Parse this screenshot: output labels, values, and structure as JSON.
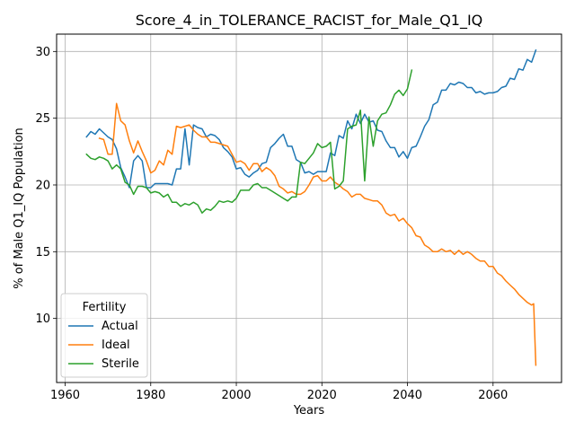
{
  "chart_data": {
    "type": "line",
    "title": "Score_4_in_TOLERANCE_RACIST_for_Male_Q1_IQ",
    "xlabel": "Years",
    "ylabel": "% of Male Q1_IQ Population",
    "xlim": [
      1958,
      2076
    ],
    "ylim": [
      5.2,
      31.3
    ],
    "xticks": [
      1960,
      1980,
      2000,
      2020,
      2040,
      2060
    ],
    "yticks": [
      10,
      15,
      20,
      25,
      30
    ],
    "grid": true,
    "legend": {
      "title": "Fertility",
      "placement": "lower-left"
    },
    "series": [
      {
        "name": "Actual",
        "color": "#1f77b4",
        "points": [
          [
            1965,
            23.6
          ],
          [
            1966,
            24.0
          ],
          [
            1967,
            23.8
          ],
          [
            1968,
            24.2
          ],
          [
            1969,
            23.9
          ],
          [
            1970,
            23.6
          ],
          [
            1971,
            23.4
          ],
          [
            1972,
            22.7
          ],
          [
            1973,
            21.3
          ],
          [
            1974,
            20.6
          ],
          [
            1975,
            19.8
          ],
          [
            1976,
            21.8
          ],
          [
            1977,
            22.2
          ],
          [
            1978,
            21.8
          ],
          [
            1979,
            19.8
          ],
          [
            1980,
            19.8
          ],
          [
            1981,
            20.1
          ],
          [
            1982,
            20.1
          ],
          [
            1983,
            20.1
          ],
          [
            1984,
            20.1
          ],
          [
            1985,
            20.0
          ],
          [
            1986,
            21.2
          ],
          [
            1987,
            21.2
          ],
          [
            1988,
            24.2
          ],
          [
            1989,
            21.5
          ],
          [
            1990,
            24.5
          ],
          [
            1991,
            24.3
          ],
          [
            1992,
            24.2
          ],
          [
            1993,
            23.6
          ],
          [
            1994,
            23.8
          ],
          [
            1995,
            23.7
          ],
          [
            1996,
            23.4
          ],
          [
            1997,
            22.8
          ],
          [
            1998,
            22.5
          ],
          [
            1999,
            22.1
          ],
          [
            2000,
            21.2
          ],
          [
            2001,
            21.3
          ],
          [
            2002,
            20.8
          ],
          [
            2003,
            20.6
          ],
          [
            2004,
            20.9
          ],
          [
            2005,
            21.1
          ],
          [
            2006,
            21.6
          ],
          [
            2007,
            21.7
          ],
          [
            2008,
            22.8
          ],
          [
            2009,
            23.1
          ],
          [
            2010,
            23.5
          ],
          [
            2011,
            23.8
          ],
          [
            2012,
            22.9
          ],
          [
            2013,
            22.9
          ],
          [
            2014,
            21.9
          ],
          [
            2015,
            21.7
          ],
          [
            2016,
            20.9
          ],
          [
            2017,
            21.0
          ],
          [
            2018,
            20.8
          ],
          [
            2019,
            21.0
          ],
          [
            2020,
            21.0
          ],
          [
            2021,
            21.0
          ],
          [
            2022,
            22.4
          ],
          [
            2023,
            22.2
          ],
          [
            2024,
            23.7
          ],
          [
            2025,
            23.5
          ],
          [
            2026,
            24.8
          ],
          [
            2027,
            24.2
          ],
          [
            2028,
            25.3
          ],
          [
            2029,
            24.6
          ],
          [
            2030,
            25.3
          ],
          [
            2031,
            24.7
          ],
          [
            2032,
            24.8
          ],
          [
            2033,
            24.1
          ],
          [
            2034,
            24.0
          ],
          [
            2035,
            23.3
          ],
          [
            2036,
            22.8
          ],
          [
            2037,
            22.8
          ],
          [
            2038,
            22.1
          ],
          [
            2039,
            22.5
          ],
          [
            2040,
            22.0
          ],
          [
            2041,
            22.8
          ],
          [
            2042,
            22.9
          ],
          [
            2043,
            23.6
          ],
          [
            2044,
            24.4
          ],
          [
            2045,
            24.9
          ],
          [
            2046,
            26.0
          ],
          [
            2047,
            26.2
          ],
          [
            2048,
            27.1
          ],
          [
            2049,
            27.1
          ],
          [
            2050,
            27.6
          ],
          [
            2051,
            27.5
          ],
          [
            2052,
            27.7
          ],
          [
            2053,
            27.6
          ],
          [
            2054,
            27.3
          ],
          [
            2055,
            27.3
          ],
          [
            2056,
            26.9
          ],
          [
            2057,
            27.0
          ],
          [
            2058,
            26.8
          ],
          [
            2059,
            26.9
          ],
          [
            2060,
            26.9
          ],
          [
            2061,
            27.0
          ],
          [
            2062,
            27.3
          ],
          [
            2063,
            27.4
          ],
          [
            2064,
            28.0
          ],
          [
            2065,
            27.9
          ],
          [
            2066,
            28.7
          ],
          [
            2067,
            28.6
          ],
          [
            2068,
            29.4
          ],
          [
            2069,
            29.2
          ],
          [
            2070,
            30.1
          ]
        ]
      },
      {
        "name": "Ideal",
        "color": "#ff7f0e",
        "points": [
          [
            1968,
            23.5
          ],
          [
            1969,
            23.4
          ],
          [
            1970,
            22.3
          ],
          [
            1971,
            22.3
          ],
          [
            1972,
            26.1
          ],
          [
            1973,
            24.8
          ],
          [
            1974,
            24.5
          ],
          [
            1975,
            23.3
          ],
          [
            1976,
            22.4
          ],
          [
            1977,
            23.3
          ],
          [
            1978,
            22.5
          ],
          [
            1979,
            21.8
          ],
          [
            1980,
            20.9
          ],
          [
            1981,
            21.1
          ],
          [
            1982,
            21.8
          ],
          [
            1983,
            21.5
          ],
          [
            1984,
            22.6
          ],
          [
            1985,
            22.3
          ],
          [
            1986,
            24.4
          ],
          [
            1987,
            24.3
          ],
          [
            1988,
            24.4
          ],
          [
            1989,
            24.5
          ],
          [
            1990,
            24.1
          ],
          [
            1991,
            23.8
          ],
          [
            1992,
            23.6
          ],
          [
            1993,
            23.6
          ],
          [
            1994,
            23.2
          ],
          [
            1995,
            23.2
          ],
          [
            1996,
            23.1
          ],
          [
            1997,
            23.0
          ],
          [
            1998,
            22.9
          ],
          [
            1999,
            22.3
          ],
          [
            2000,
            21.7
          ],
          [
            2001,
            21.8
          ],
          [
            2002,
            21.6
          ],
          [
            2003,
            21.1
          ],
          [
            2004,
            21.6
          ],
          [
            2005,
            21.6
          ],
          [
            2006,
            21.0
          ],
          [
            2007,
            21.3
          ],
          [
            2008,
            21.1
          ],
          [
            2009,
            20.7
          ],
          [
            2010,
            19.9
          ],
          [
            2011,
            19.7
          ],
          [
            2012,
            19.4
          ],
          [
            2013,
            19.5
          ],
          [
            2014,
            19.3
          ],
          [
            2015,
            19.3
          ],
          [
            2016,
            19.5
          ],
          [
            2017,
            20.0
          ],
          [
            2018,
            20.6
          ],
          [
            2019,
            20.7
          ],
          [
            2020,
            20.3
          ],
          [
            2021,
            20.3
          ],
          [
            2022,
            20.6
          ],
          [
            2023,
            20.2
          ],
          [
            2024,
            20.0
          ],
          [
            2025,
            19.7
          ],
          [
            2026,
            19.5
          ],
          [
            2027,
            19.1
          ],
          [
            2028,
            19.3
          ],
          [
            2029,
            19.3
          ],
          [
            2030,
            19.0
          ],
          [
            2031,
            18.9
          ],
          [
            2032,
            18.8
          ],
          [
            2033,
            18.8
          ],
          [
            2034,
            18.5
          ],
          [
            2035,
            17.9
          ],
          [
            2036,
            17.7
          ],
          [
            2037,
            17.8
          ],
          [
            2038,
            17.3
          ],
          [
            2039,
            17.5
          ],
          [
            2040,
            17.1
          ],
          [
            2041,
            16.8
          ],
          [
            2042,
            16.2
          ],
          [
            2043,
            16.1
          ],
          [
            2044,
            15.5
          ],
          [
            2045,
            15.3
          ],
          [
            2046,
            15.0
          ],
          [
            2047,
            15.0
          ],
          [
            2048,
            15.2
          ],
          [
            2049,
            15.0
          ],
          [
            2050,
            15.1
          ],
          [
            2051,
            14.8
          ],
          [
            2052,
            15.1
          ],
          [
            2053,
            14.8
          ],
          [
            2054,
            15.0
          ],
          [
            2055,
            14.8
          ],
          [
            2056,
            14.5
          ],
          [
            2057,
            14.3
          ],
          [
            2058,
            14.3
          ],
          [
            2059,
            13.9
          ],
          [
            2060,
            13.9
          ],
          [
            2061,
            13.4
          ],
          [
            2062,
            13.2
          ],
          [
            2063,
            12.8
          ],
          [
            2064,
            12.5
          ],
          [
            2065,
            12.2
          ],
          [
            2066,
            11.8
          ],
          [
            2067,
            11.5
          ],
          [
            2068,
            11.2
          ],
          [
            2069,
            11.0
          ],
          [
            2069.5,
            11.1
          ],
          [
            2070,
            6.5
          ]
        ]
      },
      {
        "name": "Sterile",
        "color": "#2ca02c",
        "points": [
          [
            1965,
            22.3
          ],
          [
            1966,
            22.0
          ],
          [
            1967,
            21.9
          ],
          [
            1968,
            22.1
          ],
          [
            1969,
            22.0
          ],
          [
            1970,
            21.8
          ],
          [
            1971,
            21.2
          ],
          [
            1972,
            21.5
          ],
          [
            1973,
            21.2
          ],
          [
            1974,
            20.2
          ],
          [
            1975,
            20.0
          ],
          [
            1976,
            19.3
          ],
          [
            1977,
            19.9
          ],
          [
            1978,
            19.9
          ],
          [
            1979,
            19.8
          ],
          [
            1980,
            19.4
          ],
          [
            1981,
            19.5
          ],
          [
            1982,
            19.4
          ],
          [
            1983,
            19.1
          ],
          [
            1984,
            19.3
          ],
          [
            1985,
            18.7
          ],
          [
            1986,
            18.7
          ],
          [
            1987,
            18.4
          ],
          [
            1988,
            18.6
          ],
          [
            1989,
            18.5
          ],
          [
            1990,
            18.7
          ],
          [
            1991,
            18.5
          ],
          [
            1992,
            17.9
          ],
          [
            1993,
            18.2
          ],
          [
            1994,
            18.1
          ],
          [
            1995,
            18.4
          ],
          [
            1996,
            18.8
          ],
          [
            1997,
            18.7
          ],
          [
            1998,
            18.8
          ],
          [
            1999,
            18.7
          ],
          [
            2000,
            19.0
          ],
          [
            2001,
            19.6
          ],
          [
            2002,
            19.6
          ],
          [
            2003,
            19.6
          ],
          [
            2004,
            20.0
          ],
          [
            2005,
            20.1
          ],
          [
            2006,
            19.8
          ],
          [
            2007,
            19.8
          ],
          [
            2008,
            19.6
          ],
          [
            2009,
            19.4
          ],
          [
            2010,
            19.2
          ],
          [
            2011,
            19.0
          ],
          [
            2012,
            18.8
          ],
          [
            2013,
            19.1
          ],
          [
            2014,
            19.1
          ],
          [
            2015,
            21.7
          ],
          [
            2016,
            21.6
          ],
          [
            2017,
            22.0
          ],
          [
            2018,
            22.4
          ],
          [
            2019,
            23.1
          ],
          [
            2020,
            22.8
          ],
          [
            2021,
            22.9
          ],
          [
            2022,
            23.2
          ],
          [
            2023,
            19.7
          ],
          [
            2024,
            19.9
          ],
          [
            2025,
            20.3
          ],
          [
            2026,
            24.2
          ],
          [
            2027,
            24.4
          ],
          [
            2028,
            24.5
          ],
          [
            2029,
            25.6
          ],
          [
            2030,
            20.3
          ],
          [
            2031,
            25.1
          ],
          [
            2032,
            22.9
          ],
          [
            2033,
            24.8
          ],
          [
            2034,
            25.3
          ],
          [
            2035,
            25.4
          ],
          [
            2036,
            26.0
          ],
          [
            2037,
            26.8
          ],
          [
            2038,
            27.1
          ],
          [
            2039,
            26.7
          ],
          [
            2040,
            27.2
          ],
          [
            2041,
            28.6
          ]
        ]
      }
    ]
  }
}
